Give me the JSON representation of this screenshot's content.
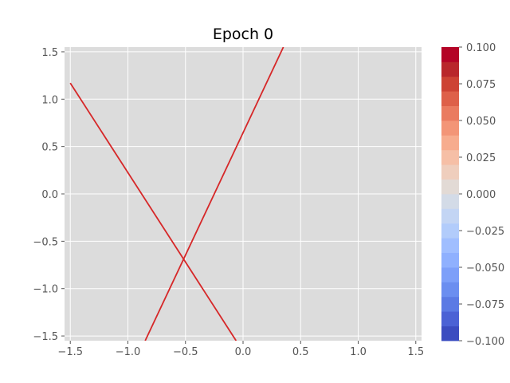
{
  "chart_data": {
    "type": "line",
    "title": "Epoch 0",
    "xlabel": "",
    "ylabel": "",
    "xlim": [
      -1.55,
      1.55
    ],
    "ylim": [
      -1.55,
      1.55
    ],
    "grid": true,
    "background": "#dcdcdc",
    "x_ticks": [
      -1.5,
      -1.0,
      -0.5,
      0.0,
      0.5,
      1.0,
      1.5
    ],
    "x_tick_labels": [
      "−1.5",
      "−1.0",
      "−0.5",
      "0.0",
      "0.5",
      "1.0",
      "1.5"
    ],
    "y_ticks": [
      1.5,
      1.0,
      0.5,
      0.0,
      -0.5,
      -1.0,
      -1.5
    ],
    "y_tick_labels": [
      "1.5",
      "1.0",
      "0.5",
      "0.0",
      "−0.5",
      "−1.0",
      "−1.5"
    ],
    "series": [
      {
        "color": "#d62728",
        "points": [
          [
            -1.5,
            1.17
          ],
          [
            -0.06,
            -1.55
          ]
        ]
      },
      {
        "color": "#d62728",
        "points": [
          [
            -0.85,
            -1.55
          ],
          [
            0.35,
            1.55
          ]
        ]
      }
    ],
    "colorbar": {
      "range": [
        -0.1,
        0.1
      ],
      "ticks": [
        0.1,
        0.075,
        0.05,
        0.025,
        0.0,
        -0.025,
        -0.05,
        -0.075,
        -0.1
      ],
      "tick_labels": [
        "0.100",
        "0.075",
        "0.050",
        "0.025",
        "0.000",
        "−0.025",
        "−0.050",
        "−0.075",
        "−0.100"
      ],
      "colormap": "coolwarm",
      "colors": [
        "#3b4cc0",
        "#4b62d5",
        "#5b7ae4",
        "#6b8ef0",
        "#7d9ff9",
        "#8fb0fe",
        "#a0beff",
        "#b2ccfb",
        "#c3d5f4",
        "#d3dbe7",
        "#e2dad5",
        "#efcebd",
        "#f6bfa6",
        "#f7ac8e",
        "#f39577",
        "#ea7b60",
        "#de6049",
        "#cd4334",
        "#b9272b",
        "#b40426"
      ]
    }
  }
}
